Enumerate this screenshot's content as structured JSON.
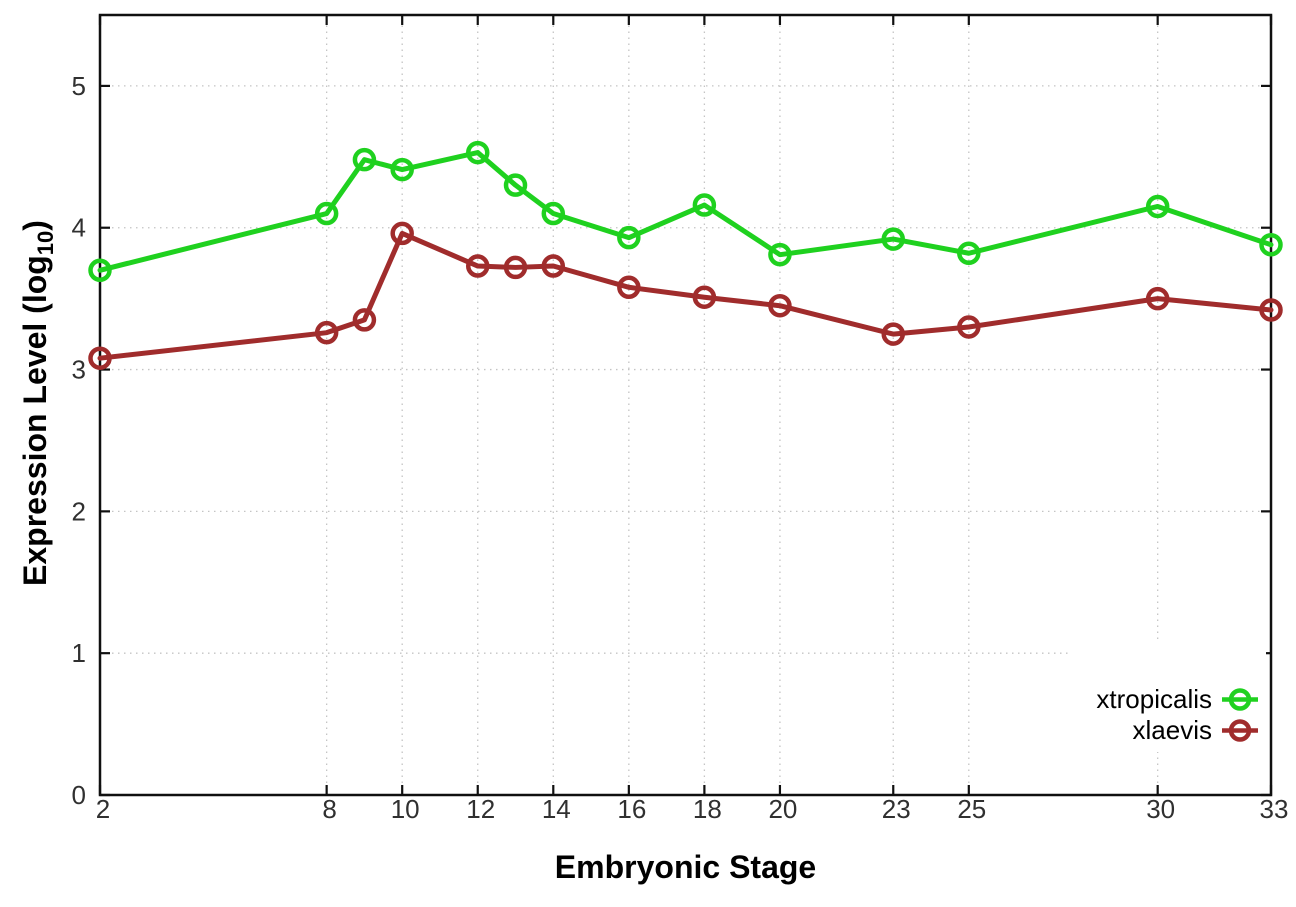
{
  "figure": {
    "background": "#ffffff",
    "border_color": "#101010",
    "grid_color": "#c4c4c4",
    "tick_label_color": "#303030"
  },
  "chart_data": {
    "type": "line",
    "title": "",
    "xlabel": "Embryonic Stage",
    "ylabel": "Expression Level (log10)",
    "ylabel_parts": {
      "prefix": "Expression Level (log",
      "sub": "10",
      "suffix": ")"
    },
    "x": [
      2,
      8,
      9,
      10,
      12,
      13,
      14,
      16,
      18,
      20,
      23,
      25,
      30,
      33
    ],
    "xticks": [
      2,
      8,
      10,
      12,
      14,
      16,
      18,
      20,
      23,
      25,
      30,
      33
    ],
    "yticks": [
      0,
      1,
      2,
      3,
      4,
      5
    ],
    "xlim": [
      2,
      33
    ],
    "ylim": [
      0,
      5.5
    ],
    "grid": true,
    "legend_position": "bottom-right",
    "marker": "open-circle",
    "series": [
      {
        "name": "xtropicalis",
        "color": "#1fd11f",
        "values": [
          3.7,
          4.1,
          4.48,
          4.41,
          4.53,
          4.3,
          4.1,
          3.93,
          4.16,
          3.81,
          3.92,
          3.82,
          4.15,
          3.88
        ]
      },
      {
        "name": "xlaevis",
        "color": "#a02c2c",
        "values": [
          3.08,
          3.26,
          3.35,
          3.96,
          3.73,
          3.72,
          3.73,
          3.58,
          3.51,
          3.45,
          3.25,
          3.3,
          3.5,
          3.42
        ]
      }
    ]
  }
}
